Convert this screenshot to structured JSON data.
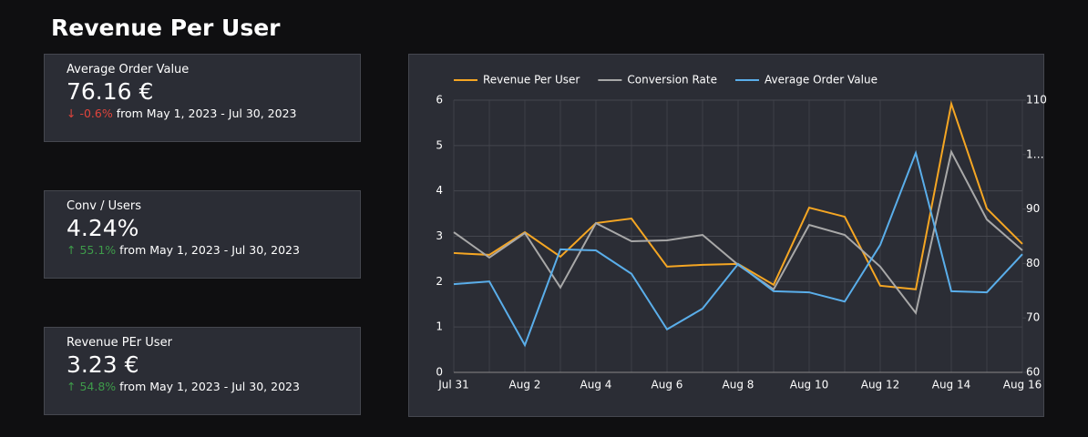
{
  "title": "Revenue Per User",
  "cards": [
    {
      "label": "Average Order Value",
      "value": "76.16 €",
      "change": "-0.6%",
      "period": "from May 1, 2023 - Jul 30, 2023"
    },
    {
      "label": "Conv / Users",
      "value": "4.24%",
      "change": "55.1%",
      "period": "from May 1, 2023 - Jul 30, 2023"
    },
    {
      "label": "Revenue PEr User",
      "value": "3.23 €",
      "change": "54.8%",
      "period": "from May 1, 2023 - Jul 30, 2023"
    }
  ],
  "chart_data": {
    "type": "line",
    "categories": [
      "Jul 31",
      null,
      "Aug 2",
      null,
      "Aug 4",
      null,
      "Aug 6",
      null,
      "Aug 8",
      null,
      "Aug 10",
      null,
      "Aug 12",
      null,
      "Aug 14",
      null,
      "Aug 16"
    ],
    "series": [
      {
        "name": "Revenue Per User",
        "color": "#f5a623",
        "values": [
          2.63,
          2.59,
          3.09,
          2.55,
          3.29,
          3.39,
          2.33,
          2.37,
          2.39,
          1.93,
          3.63,
          3.43,
          1.91,
          1.83,
          5.92,
          3.61,
          2.83
        ]
      },
      {
        "name": "Conversion Rate",
        "color": "#a8a8a8",
        "values": [
          3.09,
          2.53,
          3.07,
          1.87,
          3.29,
          2.89,
          2.91,
          3.03,
          2.37,
          1.83,
          3.25,
          3.03,
          2.33,
          1.31,
          4.86,
          3.37,
          2.69
        ]
      },
      {
        "name": "Average Order Value",
        "color": "#5aaeea",
        "axis": "y2",
        "values": [
          76.2,
          76.7,
          65.0,
          82.6,
          82.4,
          78.1,
          67.9,
          71.7,
          79.9,
          74.9,
          74.7,
          73.0,
          83.4,
          100.3,
          74.9,
          74.7,
          81.7
        ]
      }
    ],
    "ylim": [
      0,
      6
    ],
    "yticks": [
      0,
      1,
      2,
      3,
      4,
      5,
      6
    ],
    "y2lim": [
      60,
      110
    ],
    "y2ticks": [
      60,
      70,
      80,
      90,
      {
        "value": 100,
        "label": "1…"
      },
      110
    ],
    "grid": true,
    "legend": "top"
  }
}
